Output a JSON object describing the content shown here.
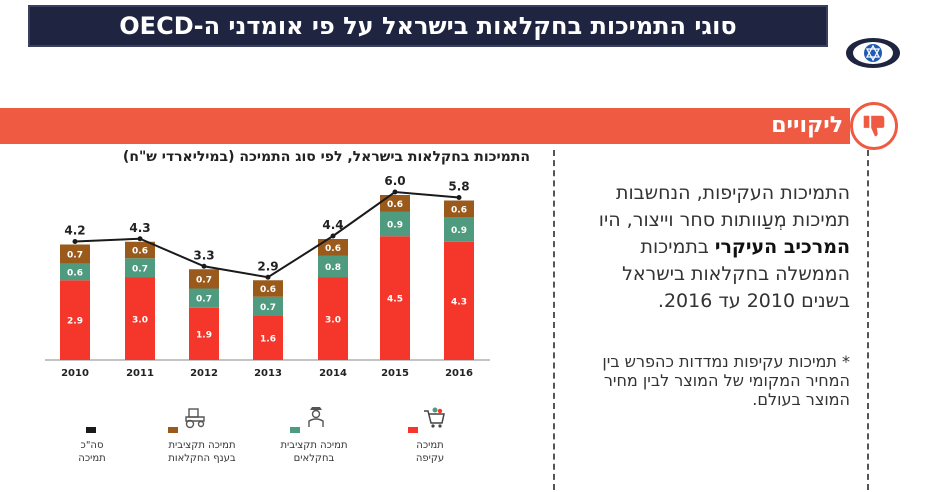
{
  "header": {
    "title": "סוגי התמיכות בחקלאות בישראל על פי אומדני ה-OECD"
  },
  "section": {
    "label": "ליקויים"
  },
  "main_text": {
    "part1": "התמיכות העקיפות, הנחשבות תמיכות מְעַוותות סחר וייצור, היו ",
    "bold": "המרכיב העיקרי",
    "part2": " בתמיכות הממשלה בחקלאות בישראל בשנים 2010 עד 2016."
  },
  "note": "* תמיכות עקיפות נמדדות כהפרש בין המחיר המקומי של המוצר לבין מחיר המוצר בעולם.",
  "colors": {
    "indirect": "#f5362a",
    "farmers": "#4f9b7f",
    "sector": "#9a5a1c",
    "total": "#1a1a1a",
    "accent": "#ef5a43",
    "navy": "#1f2440"
  },
  "chart_data": {
    "type": "bar",
    "title": "התמיכות בחקלאות בישראל, לפי סוג התמיכה (במיליארדי ש\"ח)",
    "categories": [
      "2010",
      "2011",
      "2012",
      "2013",
      "2014",
      "2015",
      "2016"
    ],
    "series": [
      {
        "name": "תמיכה עקיפה",
        "values": [
          2.9,
          3.0,
          1.9,
          1.6,
          3.0,
          4.5,
          4.3
        ]
      },
      {
        "name": "תמיכה תקציבית בחקלאים",
        "values": [
          0.6,
          0.7,
          0.7,
          0.7,
          0.8,
          0.9,
          0.9
        ]
      },
      {
        "name": "תמיכה תקציבית בענף החקלאות",
        "values": [
          0.7,
          0.6,
          0.7,
          0.6,
          0.6,
          0.6,
          0.6
        ]
      }
    ],
    "totals": {
      "name": "סה\"כ תמיכה",
      "values": [
        4.2,
        4.3,
        3.3,
        2.9,
        4.4,
        6.0,
        5.8
      ]
    },
    "legend": {
      "indirect": [
        "תמיכה",
        "עקיפה"
      ],
      "farmers": [
        "תמיכה תקציבית",
        "בחקלאים"
      ],
      "sector": [
        "תמיכה תקציבית",
        "בענף החקלאות"
      ],
      "total": [
        "סה\"כ",
        "תמיכה"
      ]
    },
    "ylim": [
      0,
      6.5
    ],
    "stacked": true,
    "legend_position": "bottom"
  }
}
